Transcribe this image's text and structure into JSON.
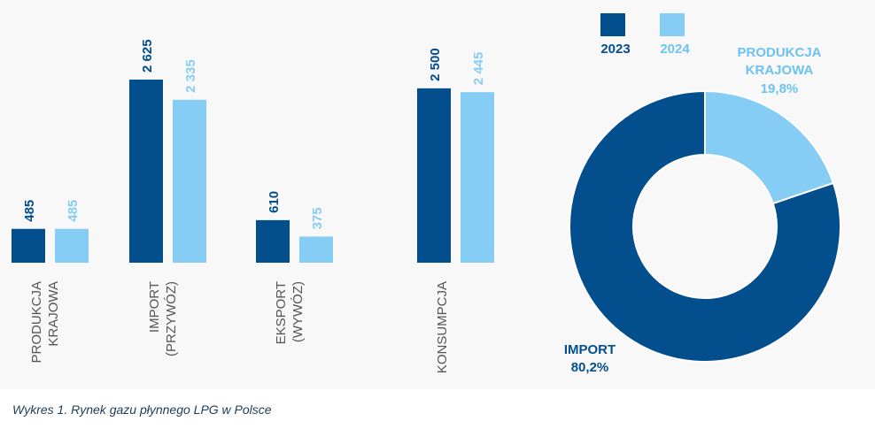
{
  "chart_data": [
    {
      "type": "bar",
      "categories": [
        "PRODUKCJA\nKRAJOWA",
        "IMPORT\n(PRZYWÓZ)",
        "EKSPORT\n(WYWÓZ)",
        "KONSUMPCJA"
      ],
      "series": [
        {
          "name": "2023",
          "values": [
            485,
            2625,
            610,
            2500
          ],
          "labels": [
            "485",
            "2 625",
            "610",
            "2 500"
          ]
        },
        {
          "name": "2024",
          "values": [
            485,
            2335,
            375,
            2445
          ],
          "labels": [
            "485",
            "2 335",
            "375",
            "2 445"
          ]
        }
      ]
    },
    {
      "type": "pie",
      "labels": [
        "IMPORT",
        "PRODUKCJA\nKRAJOWA"
      ],
      "values": [
        80.2,
        19.8
      ],
      "value_labels": [
        "80,2%",
        "19,8%"
      ]
    }
  ],
  "legend": [
    "2023",
    "2024"
  ],
  "colors": {
    "dark": "#034e8c",
    "light": "#85cdf4",
    "pie_light_label": "#6cc3ef"
  },
  "caption": "Wykres 1. Rynek gazu płynnego LPG w Polsce"
}
